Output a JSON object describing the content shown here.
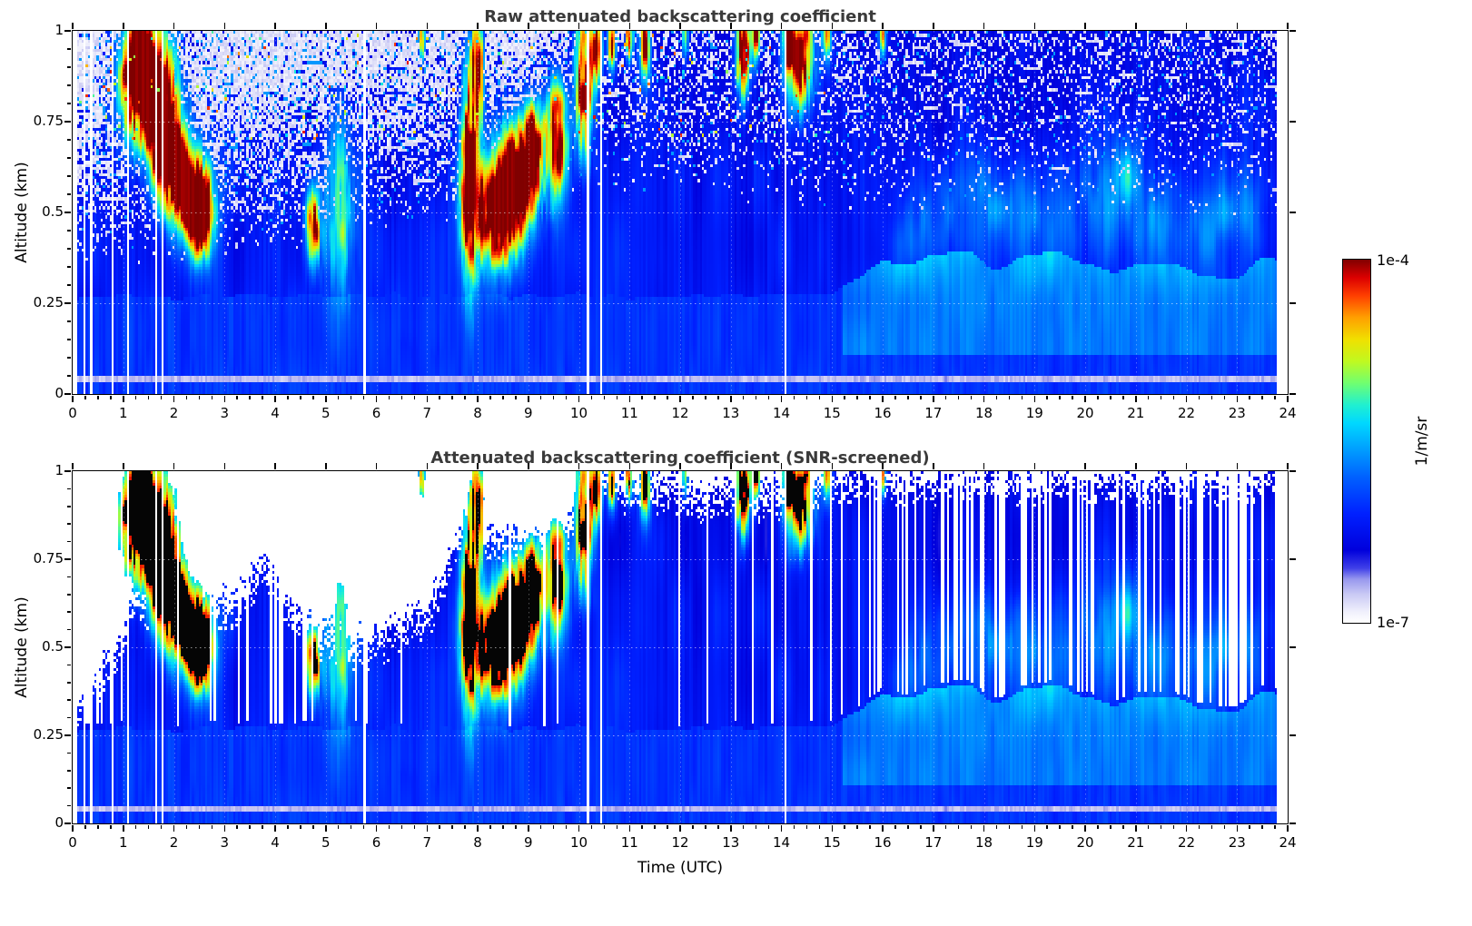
{
  "chart_data": {
    "type": "heatmap",
    "panels": [
      {
        "title": "Raw attenuated backscattering coefficient",
        "screened": false
      },
      {
        "title": "Attenuated backscattering coefficient (SNR-screened)",
        "screened": true
      }
    ],
    "x": {
      "label": "Time (UTC)",
      "min": 0,
      "max": 24,
      "units": "hours",
      "ticks": [
        "0",
        "1",
        "2",
        "3",
        "4",
        "5",
        "6",
        "7",
        "8",
        "9",
        "10",
        "11",
        "12",
        "13",
        "14",
        "15",
        "16",
        "17",
        "18",
        "19",
        "20",
        "21",
        "22",
        "23",
        "24"
      ]
    },
    "y": {
      "label": "Altitude (km)",
      "min": 0,
      "max": 1,
      "ticks": [
        "0",
        "0.25",
        "0.5",
        "0.75",
        "1"
      ]
    },
    "color_scale": {
      "scale": "log",
      "min": 1e-07,
      "max": 0.0001,
      "min_label": "1e-7",
      "max_label": "1e-4",
      "unit": "1/m/sr",
      "stops": [
        [
          0.0,
          "#ffffff"
        ],
        [
          0.03,
          "#f0f0fc"
        ],
        [
          0.08,
          "#c8c8f4"
        ],
        [
          0.12,
          "#9898ee"
        ],
        [
          0.15,
          "#4040e8"
        ],
        [
          0.2,
          "#0000dc"
        ],
        [
          0.3,
          "#0020ff"
        ],
        [
          0.4,
          "#0060ff"
        ],
        [
          0.48,
          "#00a0ff"
        ],
        [
          0.55,
          "#00d8ff"
        ],
        [
          0.6,
          "#20f0d0"
        ],
        [
          0.66,
          "#70ff70"
        ],
        [
          0.72,
          "#c0f920"
        ],
        [
          0.78,
          "#f0e000"
        ],
        [
          0.84,
          "#ffa000"
        ],
        [
          0.9,
          "#ff4000"
        ],
        [
          0.95,
          "#dc0000"
        ],
        [
          1.0,
          "#800000"
        ]
      ]
    },
    "features": {
      "cloud_layers": [
        [
          1.5,
          0.84,
          0.38,
          0.12,
          1.0
        ],
        [
          1.3,
          0.93,
          0.18,
          0.08,
          0.95
        ],
        [
          1.75,
          0.7,
          0.15,
          0.1,
          0.9
        ],
        [
          2.05,
          0.64,
          0.14,
          0.07,
          0.9
        ],
        [
          2.3,
          0.55,
          0.28,
          0.09,
          0.95
        ],
        [
          2.55,
          0.48,
          0.15,
          0.07,
          0.85
        ],
        [
          4.75,
          0.46,
          0.1,
          0.07,
          0.85
        ],
        [
          5.3,
          0.52,
          0.22,
          0.17,
          0.38
        ],
        [
          6.9,
          0.99,
          0.05,
          0.05,
          0.65
        ],
        [
          7.85,
          0.62,
          0.13,
          0.2,
          0.95
        ],
        [
          8.0,
          0.9,
          0.08,
          0.1,
          0.8
        ],
        [
          8.35,
          0.5,
          0.3,
          0.1,
          1.0
        ],
        [
          8.8,
          0.6,
          0.25,
          0.11,
          0.95
        ],
        [
          9.1,
          0.68,
          0.12,
          0.08,
          0.85
        ],
        [
          9.55,
          0.7,
          0.16,
          0.11,
          0.9
        ],
        [
          10.1,
          0.85,
          0.12,
          0.13,
          0.95
        ],
        [
          10.35,
          0.96,
          0.08,
          0.07,
          0.85
        ],
        [
          10.65,
          0.97,
          0.05,
          0.06,
          0.75
        ],
        [
          11.0,
          0.99,
          0.05,
          0.05,
          0.8
        ],
        [
          11.3,
          0.96,
          0.07,
          0.07,
          0.8
        ],
        [
          12.1,
          0.99,
          0.04,
          0.05,
          0.6
        ],
        [
          13.25,
          0.95,
          0.1,
          0.09,
          0.95
        ],
        [
          13.5,
          0.99,
          0.06,
          0.05,
          0.8
        ],
        [
          14.15,
          0.99,
          0.06,
          0.06,
          0.9
        ],
        [
          14.35,
          0.93,
          0.18,
          0.1,
          1.0
        ],
        [
          14.9,
          0.99,
          0.06,
          0.05,
          0.75
        ],
        [
          16.0,
          0.99,
          0.05,
          0.04,
          0.55
        ]
      ],
      "aerosol_wisps": [
        [
          16.5,
          0.42,
          0.4,
          0.08,
          0.12
        ],
        [
          17.3,
          0.5,
          0.5,
          0.1,
          0.14
        ],
        [
          18.3,
          0.55,
          0.4,
          0.09,
          0.13
        ],
        [
          19.1,
          0.45,
          0.5,
          0.1,
          0.12
        ],
        [
          20.3,
          0.55,
          0.5,
          0.11,
          0.15
        ],
        [
          20.8,
          0.65,
          0.3,
          0.08,
          0.1
        ],
        [
          21.2,
          0.5,
          0.4,
          0.1,
          0.13
        ],
        [
          22.1,
          0.45,
          0.5,
          0.1,
          0.12
        ],
        [
          23.1,
          0.5,
          0.45,
          0.1,
          0.14
        ]
      ],
      "noise_speckle_base": {
        "t": [
          0,
          3,
          5,
          7,
          9,
          10,
          12,
          15,
          24
        ],
        "z": [
          0.34,
          0.36,
          0.4,
          0.46,
          0.46,
          0.55,
          0.52,
          0.5,
          0.48
        ]
      },
      "noise_speckle_density": {
        "t": [
          0,
          9.5,
          10.5,
          15,
          16,
          24
        ],
        "p": [
          0.85,
          0.8,
          0.5,
          0.42,
          0.3,
          0.28
        ]
      },
      "snr_mask_top": {
        "t": [
          0,
          0.8,
          1.2,
          3,
          3.8,
          4.5,
          5.2,
          6,
          7,
          7.6,
          9.6,
          10,
          10.4,
          12,
          14.6,
          15,
          24
        ],
        "z": [
          0.3,
          0.45,
          0.62,
          0.6,
          0.72,
          0.55,
          0.5,
          0.52,
          0.58,
          0.8,
          0.78,
          0.88,
          0.97,
          0.92,
          0.93,
          0.97,
          0.97
        ]
      },
      "raw_missing_profiles": [
        [
          0,
          1,
          0.2
        ],
        [
          1,
          3.3,
          0.1
        ],
        [
          3.3,
          10.3,
          0.012
        ],
        [
          10.3,
          11.6,
          0.05
        ],
        [
          11.6,
          12.9,
          0.015
        ],
        [
          12.9,
          15.4,
          0.045
        ],
        [
          15.4,
          23.8,
          0.006
        ]
      ],
      "screened_missing_profiles": [
        [
          0,
          1,
          0.45
        ],
        [
          1,
          2.6,
          0.12
        ],
        [
          2.6,
          5,
          0.22
        ],
        [
          5,
          7.5,
          0.06
        ],
        [
          7.5,
          10,
          0.04
        ],
        [
          10,
          10.6,
          0.12
        ],
        [
          10.6,
          12.6,
          0.05
        ],
        [
          12.6,
          13.4,
          0.03
        ],
        [
          13.4,
          15.1,
          0.1
        ],
        [
          15.1,
          16.2,
          0.25
        ],
        [
          16.2,
          24,
          0.34
        ]
      ],
      "boundary_layer": {
        "top_km_0_15utc": 0.27,
        "top_km_15_24utc": 0.4,
        "pale_band_km": 0.045
      },
      "data_end_utc": 23.78
    }
  }
}
